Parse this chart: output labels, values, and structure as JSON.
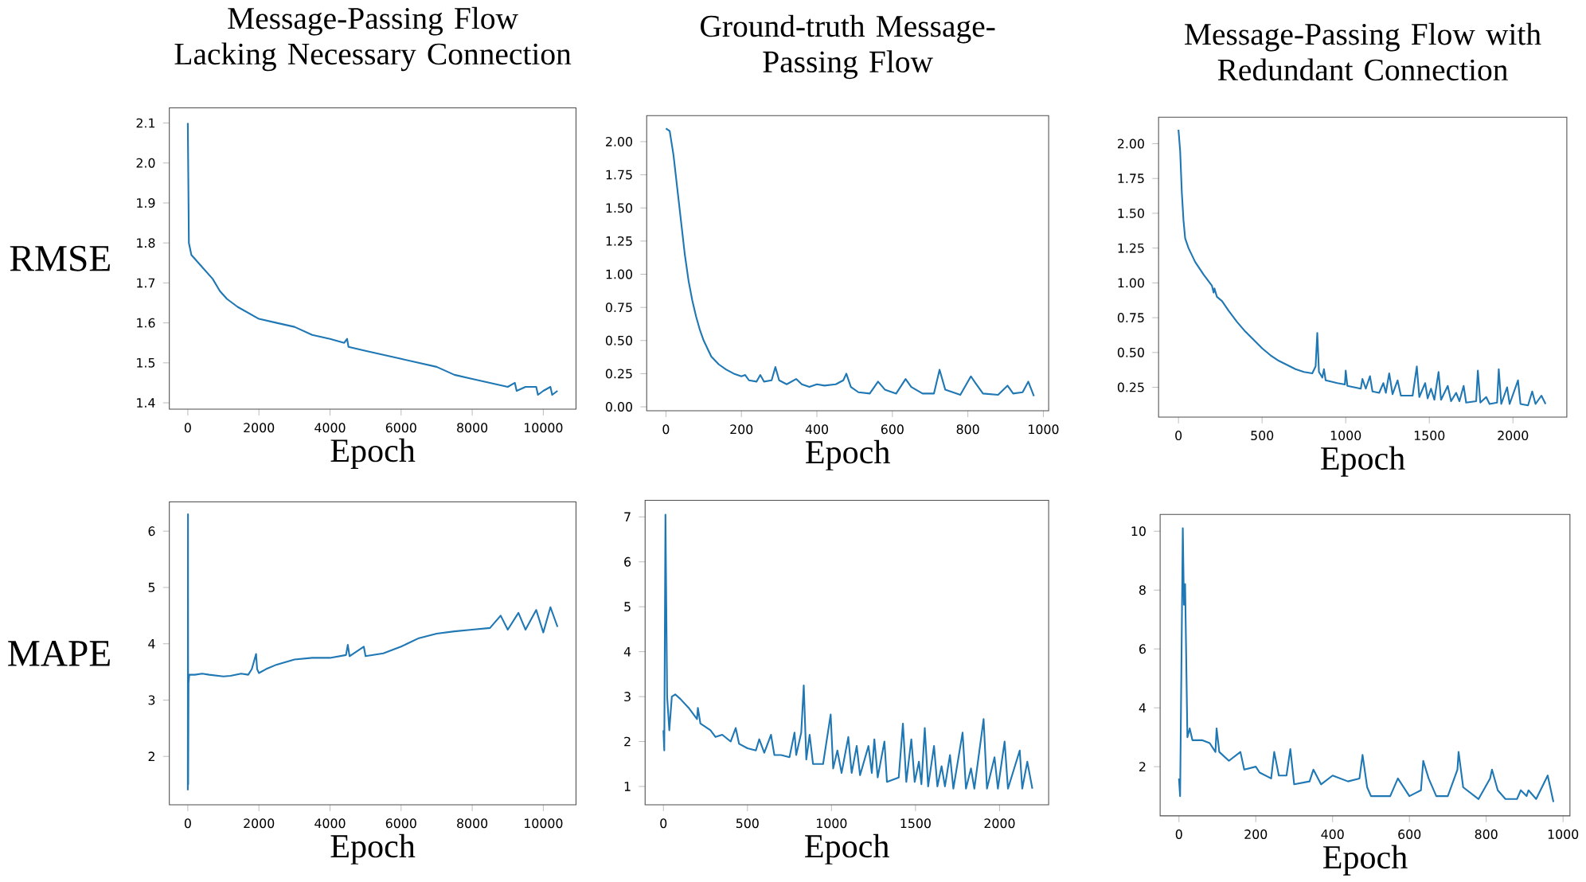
{
  "chart_data": [
    {
      "type": "line",
      "title": "Message-Passing Flow Lacking Necessary Connection",
      "xlabel": "Epoch",
      "ylabel": "RMSE",
      "color": "#1f77b4",
      "x": [
        0,
        10,
        30,
        100,
        300,
        500,
        700,
        900,
        1100,
        1400,
        1800,
        2000,
        2500,
        3000,
        3500,
        4000,
        4400,
        4480,
        4520,
        5000,
        5500,
        6000,
        6500,
        7000,
        7500,
        8000,
        8500,
        9000,
        9200,
        9250,
        9500,
        9800,
        9850,
        10000,
        10200,
        10250,
        10400
      ],
      "values": [
        2.1,
        2.0,
        1.8,
        1.77,
        1.75,
        1.73,
        1.71,
        1.68,
        1.66,
        1.64,
        1.62,
        1.61,
        1.6,
        1.59,
        1.57,
        1.56,
        1.55,
        1.56,
        1.54,
        1.53,
        1.52,
        1.51,
        1.5,
        1.49,
        1.47,
        1.46,
        1.45,
        1.44,
        1.45,
        1.43,
        1.44,
        1.44,
        1.42,
        1.43,
        1.44,
        1.42,
        1.43
      ],
      "xlim": [
        -520,
        10920
      ],
      "ylim": [
        1.384,
        2.138
      ],
      "xticks": [
        0,
        2000,
        4000,
        6000,
        8000,
        10000
      ],
      "yticks": [
        1.4,
        1.5,
        1.6,
        1.7,
        1.8,
        1.9,
        {
          "value": 2,
          "label": "2.0"
        },
        2.1
      ]
    },
    {
      "type": "line",
      "title": "Ground-truth Message-Passing Flow",
      "xlabel": "Epoch",
      "color": "#1f77b4",
      "x": [
        0,
        10,
        20,
        30,
        40,
        50,
        60,
        70,
        80,
        90,
        100,
        110,
        120,
        140,
        160,
        180,
        200,
        210,
        220,
        240,
        250,
        260,
        280,
        290,
        300,
        320,
        345,
        360,
        380,
        400,
        420,
        450,
        470,
        478,
        490,
        510,
        540,
        562,
        580,
        610,
        635,
        650,
        680,
        710,
        725,
        740,
        780,
        808,
        820,
        840,
        880,
        905,
        920,
        945,
        960,
        975
      ],
      "values": [
        2.1,
        2.08,
        1.9,
        1.65,
        1.4,
        1.15,
        0.95,
        0.8,
        0.68,
        0.58,
        0.5,
        0.44,
        0.38,
        0.32,
        0.28,
        0.25,
        0.23,
        0.24,
        0.2,
        0.19,
        0.24,
        0.19,
        0.2,
        0.3,
        0.2,
        0.17,
        0.21,
        0.17,
        0.15,
        0.17,
        0.16,
        0.17,
        0.2,
        0.25,
        0.15,
        0.11,
        0.1,
        0.19,
        0.13,
        0.1,
        0.21,
        0.15,
        0.1,
        0.1,
        0.28,
        0.13,
        0.09,
        0.23,
        0.18,
        0.1,
        0.09,
        0.16,
        0.1,
        0.11,
        0.19,
        0.08
      ],
      "xlim": [
        -51,
        1014
      ],
      "ylim": [
        -0.03,
        2.196
      ],
      "xticks": [
        0,
        200,
        400,
        600,
        800,
        1000
      ],
      "yticks": [
        {
          "value": 0,
          "label": "0.00"
        },
        {
          "value": 0.25,
          "label": "0.25"
        },
        {
          "value": 0.5,
          "label": "0.50"
        },
        {
          "value": 0.75,
          "label": "0.75"
        },
        {
          "value": 1,
          "label": "1.00"
        },
        {
          "value": 1.25,
          "label": "1.25"
        },
        {
          "value": 1.5,
          "label": "1.50"
        },
        {
          "value": 1.75,
          "label": "1.75"
        },
        {
          "value": 2,
          "label": "2.00"
        }
      ]
    },
    {
      "type": "line",
      "title": "Message-Passing Flow with Redundant Connection",
      "xlabel": "Epoch",
      "color": "#1f77b4",
      "x": [
        0,
        10,
        20,
        30,
        40,
        60,
        100,
        150,
        200,
        210,
        215,
        230,
        260,
        300,
        350,
        400,
        450,
        500,
        550,
        600,
        650,
        700,
        750,
        800,
        820,
        830,
        840,
        860,
        870,
        880,
        950,
        995,
        1000,
        1010,
        1050,
        1090,
        1100,
        1120,
        1145,
        1160,
        1200,
        1225,
        1240,
        1260,
        1280,
        1310,
        1330,
        1400,
        1425,
        1440,
        1475,
        1490,
        1510,
        1530,
        1555,
        1570,
        1610,
        1630,
        1660,
        1680,
        1705,
        1720,
        1780,
        1790,
        1805,
        1840,
        1860,
        1905,
        1915,
        1930,
        1965,
        1980,
        2030,
        2045,
        2090,
        2115,
        2135,
        2170,
        2195
      ],
      "values": [
        2.1,
        1.95,
        1.65,
        1.45,
        1.32,
        1.25,
        1.15,
        1.06,
        0.98,
        0.93,
        0.96,
        0.9,
        0.87,
        0.8,
        0.72,
        0.65,
        0.59,
        0.53,
        0.48,
        0.44,
        0.41,
        0.38,
        0.36,
        0.35,
        0.4,
        0.64,
        0.36,
        0.32,
        0.38,
        0.3,
        0.28,
        0.27,
        0.37,
        0.26,
        0.25,
        0.24,
        0.31,
        0.24,
        0.33,
        0.22,
        0.21,
        0.28,
        0.21,
        0.35,
        0.2,
        0.3,
        0.19,
        0.19,
        0.4,
        0.18,
        0.28,
        0.17,
        0.24,
        0.16,
        0.36,
        0.16,
        0.26,
        0.15,
        0.21,
        0.15,
        0.26,
        0.14,
        0.15,
        0.37,
        0.14,
        0.18,
        0.13,
        0.14,
        0.38,
        0.13,
        0.25,
        0.13,
        0.3,
        0.13,
        0.12,
        0.22,
        0.13,
        0.19,
        0.13
      ],
      "xlim": [
        -119,
        2322
      ],
      "ylim": [
        0.036,
        2.19
      ],
      "xticks": [
        0,
        500,
        1000,
        1500,
        2000
      ],
      "yticks": [
        {
          "value": 0.25,
          "label": "0.25"
        },
        {
          "value": 0.5,
          "label": "0.50"
        },
        {
          "value": 0.75,
          "label": "0.75"
        },
        {
          "value": 1,
          "label": "1.00"
        },
        {
          "value": 1.25,
          "label": "1.25"
        },
        {
          "value": 1.5,
          "label": "1.50"
        },
        {
          "value": 1.75,
          "label": "1.75"
        },
        {
          "value": 2,
          "label": "2.00"
        }
      ]
    },
    {
      "type": "line",
      "xlabel": "Epoch",
      "ylabel": "MAPE",
      "color": "#1f77b4",
      "x": [
        0,
        5,
        10,
        20,
        40,
        200,
        400,
        600,
        1000,
        1200,
        1500,
        1700,
        1800,
        1920,
        1950,
        2000,
        2200,
        2500,
        3000,
        3500,
        4000,
        4450,
        4500,
        4550,
        4950,
        5000,
        5500,
        6000,
        6500,
        7000,
        7500,
        8000,
        8500,
        8800,
        9000,
        9300,
        9500,
        9800,
        10000,
        10200,
        10400
      ],
      "values": [
        1.4,
        6.3,
        1.5,
        3.3,
        3.45,
        3.45,
        3.47,
        3.45,
        3.42,
        3.43,
        3.47,
        3.45,
        3.55,
        3.82,
        3.55,
        3.48,
        3.55,
        3.63,
        3.72,
        3.75,
        3.75,
        3.8,
        3.98,
        3.78,
        3.95,
        3.78,
        3.83,
        3.95,
        4.1,
        4.18,
        4.22,
        4.25,
        4.28,
        4.5,
        4.25,
        4.55,
        4.25,
        4.6,
        4.2,
        4.65,
        4.3
      ],
      "xlim": [
        -520,
        10920
      ],
      "ylim": [
        1.14,
        6.52
      ],
      "xticks": [
        0,
        2000,
        4000,
        6000,
        8000,
        10000
      ],
      "yticks": [
        2,
        3,
        4,
        5,
        6
      ]
    },
    {
      "type": "line",
      "xlabel": "Epoch",
      "color": "#1f77b4",
      "x": [
        0,
        5,
        12,
        22,
        35,
        50,
        70,
        100,
        150,
        200,
        205,
        220,
        280,
        310,
        350,
        400,
        430,
        450,
        500,
        550,
        570,
        600,
        640,
        660,
        700,
        750,
        780,
        790,
        820,
        835,
        850,
        870,
        890,
        950,
        995,
        1010,
        1035,
        1060,
        1100,
        1120,
        1150,
        1170,
        1220,
        1240,
        1255,
        1275,
        1315,
        1330,
        1400,
        1425,
        1445,
        1475,
        1495,
        1520,
        1535,
        1555,
        1575,
        1610,
        1630,
        1655,
        1675,
        1705,
        1725,
        1780,
        1800,
        1830,
        1850,
        1905,
        1925,
        1970,
        1990,
        2030,
        2050,
        2120,
        2135,
        2165,
        2180,
        2195
      ],
      "values": [
        2.25,
        1.8,
        7.05,
        3.0,
        2.25,
        3.0,
        3.05,
        2.95,
        2.75,
        2.5,
        2.75,
        2.4,
        2.25,
        2.1,
        2.15,
        2.0,
        2.3,
        1.95,
        1.85,
        1.8,
        2.05,
        1.75,
        2.15,
        1.7,
        1.7,
        1.65,
        2.2,
        1.7,
        2.2,
        3.25,
        1.6,
        2.15,
        1.5,
        1.5,
        2.6,
        1.4,
        1.8,
        1.3,
        2.1,
        1.3,
        1.9,
        1.25,
        1.9,
        1.3,
        2.05,
        1.2,
        2.0,
        1.1,
        1.2,
        2.4,
        1.1,
        2.05,
        1.1,
        1.55,
        1.05,
        2.3,
        1.0,
        1.9,
        1.0,
        1.45,
        1.0,
        1.7,
        0.95,
        2.2,
        0.95,
        1.4,
        0.95,
        2.5,
        0.95,
        1.65,
        0.95,
        2.0,
        0.95,
        1.8,
        0.95,
        1.55,
        1.25,
        0.95
      ],
      "xlim": [
        -109,
        2292
      ],
      "ylim": [
        0.59,
        7.37
      ],
      "xticks": [
        0,
        500,
        1000,
        1500,
        2000
      ],
      "yticks": [
        1,
        2,
        3,
        4,
        5,
        6,
        7
      ]
    },
    {
      "type": "line",
      "xlabel": "Epoch",
      "color": "#1f77b4",
      "x": [
        0,
        3,
        10,
        13,
        16,
        22,
        28,
        35,
        60,
        80,
        95,
        98,
        105,
        130,
        160,
        170,
        200,
        210,
        240,
        248,
        260,
        280,
        290,
        300,
        340,
        350,
        370,
        400,
        440,
        470,
        478,
        490,
        500,
        550,
        570,
        600,
        630,
        636,
        650,
        670,
        700,
        725,
        728,
        740,
        780,
        810,
        815,
        830,
        850,
        880,
        890,
        905,
        910,
        930,
        960,
        975
      ],
      "values": [
        1.6,
        1.0,
        10.1,
        7.5,
        8.2,
        3.0,
        3.3,
        2.9,
        2.9,
        2.8,
        2.5,
        3.3,
        2.5,
        2.2,
        2.5,
        1.9,
        2.0,
        1.8,
        1.6,
        2.5,
        1.7,
        1.7,
        2.6,
        1.4,
        1.5,
        1.9,
        1.4,
        1.7,
        1.5,
        1.6,
        2.4,
        1.3,
        1.0,
        1.0,
        1.6,
        1.0,
        1.2,
        2.2,
        1.6,
        1.0,
        1.0,
        1.9,
        2.5,
        1.3,
        0.9,
        1.6,
        1.9,
        1.2,
        0.9,
        0.9,
        1.2,
        1.0,
        1.2,
        0.9,
        1.7,
        0.8
      ],
      "xlim": [
        -49,
        1018
      ],
      "ylim": [
        0.33,
        10.57
      ],
      "xticks": [
        0,
        200,
        400,
        600,
        800,
        1000
      ],
      "yticks": [
        2,
        4,
        6,
        8,
        10
      ]
    }
  ]
}
